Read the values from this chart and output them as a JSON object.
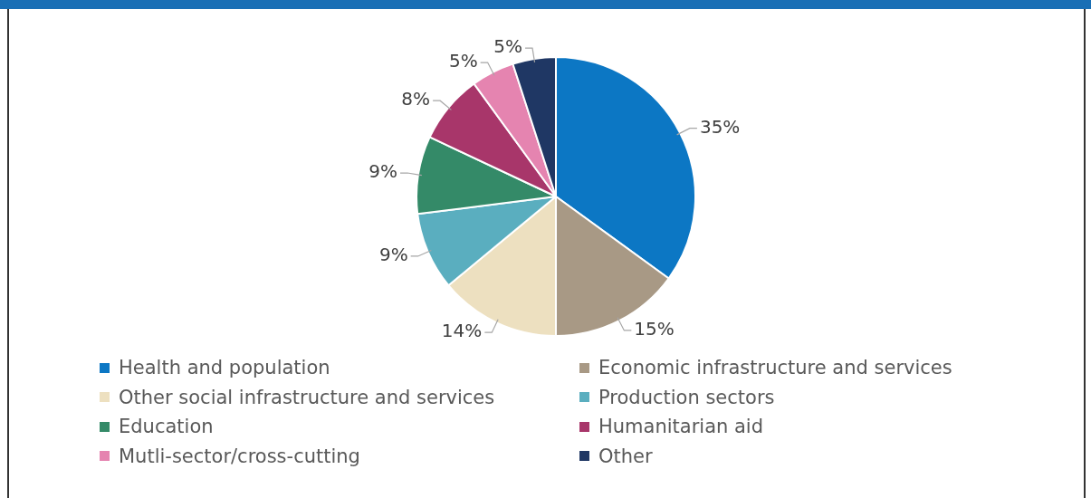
{
  "chart_data": {
    "type": "pie",
    "categories": [
      "Health and population",
      "Economic infrastructure and services",
      "Other social infrastructure and services",
      "Production sectors",
      "Education",
      "Humanitarian aid",
      "Mutli-sector/cross-cutting",
      "Other"
    ],
    "values": [
      35,
      15,
      14,
      9,
      9,
      8,
      5,
      5
    ],
    "value_labels": [
      "35%",
      "15%",
      "14%",
      "9%",
      "9%",
      "8%",
      "5%",
      "5%"
    ],
    "colors": [
      "#0c77c4",
      "#a89985",
      "#ede0c0",
      "#5aaebf",
      "#348a68",
      "#a8366a",
      "#e584b0",
      "#1f3764"
    ],
    "legend": "bottom"
  }
}
